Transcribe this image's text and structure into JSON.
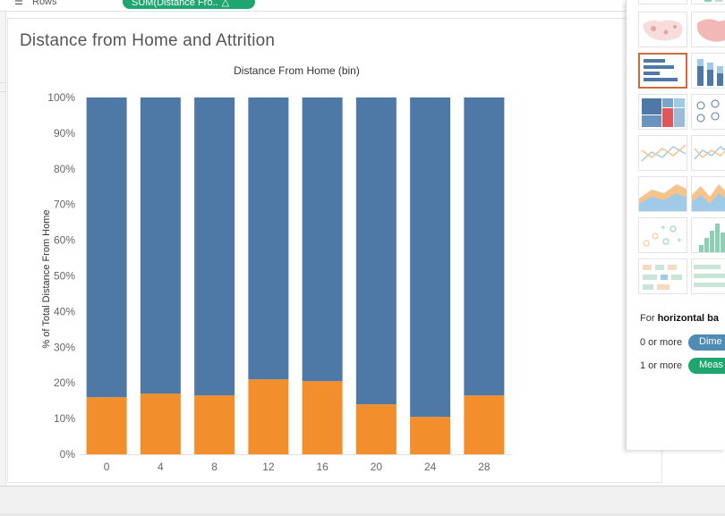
{
  "shelf": {
    "rows_label": "Rows",
    "rows_pill": "SUM(Distance Fro..",
    "rows_pill_delta": "△"
  },
  "sheet": {
    "title": "Distance from Home and Attrition"
  },
  "chart_data": {
    "type": "bar",
    "stacked": true,
    "title": "",
    "xlabel": "Distance From Home (bin)",
    "ylabel": "% of Total Distance From Home",
    "categories": [
      "0",
      "4",
      "8",
      "12",
      "16",
      "20",
      "24",
      "28"
    ],
    "series": [
      {
        "color": "#f28e2b",
        "values": [
          16,
          17,
          16.5,
          21,
          20.5,
          14,
          10.5,
          16.5
        ]
      },
      {
        "color": "#4e79a7",
        "values": [
          84,
          83,
          83.5,
          79,
          79.5,
          86,
          89.5,
          83.5
        ]
      }
    ],
    "yticks": [
      "0%",
      "10%",
      "20%",
      "30%",
      "40%",
      "50%",
      "60%",
      "70%",
      "80%",
      "90%",
      "100%"
    ],
    "ylim": [
      0,
      100
    ],
    "grid": false,
    "legend": "none"
  },
  "showme": {
    "hint_prefix": "For ",
    "hint_bold": "horizontal ba",
    "dim_count": "0 or more",
    "dim_pill": "Dime",
    "meas_count": "1 or more",
    "meas_pill": "Meas",
    "colors": {
      "selected": "#d0693b",
      "dimension": "#4e8cb5",
      "measure": "#1fa56f"
    }
  }
}
